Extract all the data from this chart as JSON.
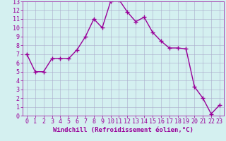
{
  "x": [
    0,
    1,
    2,
    3,
    4,
    5,
    6,
    7,
    8,
    9,
    10,
    11,
    12,
    13,
    14,
    15,
    16,
    17,
    18,
    19,
    20,
    21,
    22,
    23
  ],
  "y": [
    7.0,
    5.0,
    5.0,
    6.5,
    6.5,
    6.5,
    7.5,
    9.0,
    11.0,
    10.0,
    13.0,
    13.2,
    11.8,
    10.7,
    11.2,
    9.5,
    8.5,
    7.7,
    7.7,
    7.6,
    3.3,
    2.0,
    0.2,
    1.2
  ],
  "line_color": "#990099",
  "marker": "+",
  "marker_color": "#990099",
  "bg_color": "#d4f0f0",
  "grid_color": "#aaaacc",
  "xlabel": "Windchill (Refroidissement éolien,°C)",
  "xlim": [
    -0.5,
    23.5
  ],
  "ylim": [
    0,
    13
  ],
  "yticks": [
    0,
    1,
    2,
    3,
    4,
    5,
    6,
    7,
    8,
    9,
    10,
    11,
    12,
    13
  ],
  "xticks": [
    0,
    1,
    2,
    3,
    4,
    5,
    6,
    7,
    8,
    9,
    10,
    11,
    12,
    13,
    14,
    15,
    16,
    17,
    18,
    19,
    20,
    21,
    22,
    23
  ],
  "tick_color": "#990099",
  "xlabel_color": "#990099",
  "xlabel_fontsize": 6.5,
  "tick_fontsize": 6.0,
  "line_width": 1.0,
  "marker_size": 4
}
